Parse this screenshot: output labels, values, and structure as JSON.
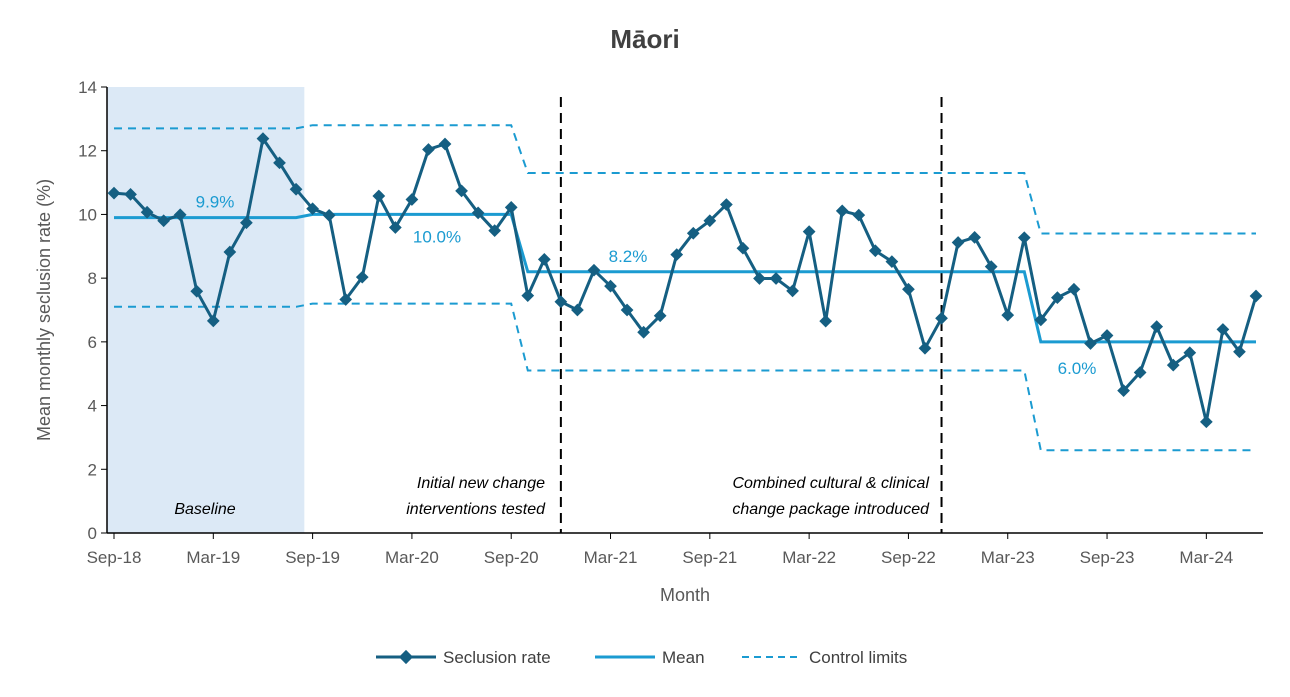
{
  "chart_data": {
    "type": "line",
    "title": "Māori",
    "xlabel": "Month",
    "ylabel": "Mean monthly seclusion rate (%)",
    "ylim": [
      0,
      14
    ],
    "yticks": [
      0,
      2,
      4,
      6,
      8,
      10,
      12,
      14
    ],
    "grid": false,
    "legend_position": "bottom",
    "x": [
      "Sep-18",
      "Oct-18",
      "Nov-18",
      "Dec-18",
      "Jan-19",
      "Feb-19",
      "Mar-19",
      "Apr-19",
      "May-19",
      "Jun-19",
      "Jul-19",
      "Aug-19",
      "Sep-19",
      "Oct-19",
      "Nov-19",
      "Dec-19",
      "Jan-20",
      "Feb-20",
      "Mar-20",
      "Apr-20",
      "May-20",
      "Jun-20",
      "Jul-20",
      "Aug-20",
      "Sep-20",
      "Oct-20",
      "Nov-20",
      "Dec-20",
      "Jan-21",
      "Feb-21",
      "Mar-21",
      "Apr-21",
      "May-21",
      "Jun-21",
      "Jul-21",
      "Aug-21",
      "Sep-21",
      "Oct-21",
      "Nov-21",
      "Dec-21",
      "Jan-22",
      "Feb-22",
      "Mar-22",
      "Apr-22",
      "May-22",
      "Jun-22",
      "Jul-22",
      "Aug-22",
      "Sep-22",
      "Oct-22",
      "Nov-22",
      "Dec-22",
      "Jan-23",
      "Feb-23",
      "Mar-23",
      "Apr-23",
      "May-23",
      "Jun-23",
      "Jul-23",
      "Aug-23",
      "Sep-23",
      "Oct-23",
      "Nov-23",
      "Dec-23",
      "Jan-24",
      "Feb-24",
      "Mar-24",
      "Apr-24",
      "May-24",
      "Jun-24"
    ],
    "xtick_labels": [
      "Sep-18",
      "Mar-19",
      "Sep-19",
      "Mar-20",
      "Sep-20",
      "Mar-21",
      "Sep-21",
      "Mar-22",
      "Sep-22",
      "Mar-23",
      "Sep-23",
      "Mar-24"
    ],
    "series": [
      {
        "name": "Seclusion rate",
        "color": "#155f82",
        "style": "solid-diamond-markers",
        "values": [
          10.67,
          10.63,
          10.07,
          9.8,
          9.99,
          7.59,
          6.66,
          8.82,
          9.74,
          12.38,
          11.62,
          10.79,
          10.18,
          9.97,
          7.33,
          8.03,
          10.58,
          9.59,
          10.47,
          12.04,
          12.21,
          10.74,
          10.05,
          9.49,
          10.22,
          7.45,
          8.59,
          7.26,
          7.0,
          8.25,
          7.75,
          7.0,
          6.3,
          6.82,
          8.74,
          9.41,
          9.8,
          10.31,
          8.94,
          7.99,
          7.99,
          7.6,
          9.46,
          6.65,
          10.11,
          9.98,
          8.86,
          8.52,
          7.65,
          5.8,
          6.74,
          9.12,
          9.28,
          8.36,
          6.84,
          9.27,
          6.69,
          7.39,
          7.65,
          5.95,
          6.2,
          4.47,
          5.04,
          6.48,
          5.27,
          5.66,
          3.49,
          6.39,
          5.69,
          7.44
        ]
      },
      {
        "name": "Mean",
        "color": "#1b9bd1",
        "style": "solid",
        "segments": [
          {
            "from": "Sep-18",
            "to": "Aug-19",
            "value": 9.9,
            "label": "9.9%"
          },
          {
            "from": "Sep-19",
            "to": "Sep-20",
            "value": 10.0,
            "label": "10.0%"
          },
          {
            "from": "Oct-20",
            "to": "Apr-23",
            "value": 8.2,
            "label": "8.2%"
          },
          {
            "from": "May-23",
            "to": "Jun-24",
            "value": 6.0,
            "label": "6.0%"
          }
        ]
      },
      {
        "name": "Control limits",
        "color": "#1b9bd1",
        "style": "dashed",
        "segments": [
          {
            "from": "Sep-18",
            "to": "Aug-19",
            "upper": 12.7,
            "lower": 7.1
          },
          {
            "from": "Sep-19",
            "to": "Sep-20",
            "upper": 12.8,
            "lower": 7.2
          },
          {
            "from": "Oct-20",
            "to": "Apr-23",
            "upper": 11.3,
            "lower": 5.1
          },
          {
            "from": "May-23",
            "to": "Jun-24",
            "upper": 9.4,
            "lower": 2.6
          }
        ]
      }
    ],
    "phases": [
      {
        "label": "Baseline",
        "shaded": true,
        "shade_color": "#dce9f6",
        "from": "Sep-18",
        "to": "Aug-19"
      },
      {
        "label_lines": [
          "Initial new change",
          "interventions tested"
        ],
        "boundary_after": "Dec-20"
      },
      {
        "label_lines": [
          "Combined cultural & clinical",
          "change package introduced"
        ],
        "boundary_after": "Nov-22"
      }
    ]
  }
}
